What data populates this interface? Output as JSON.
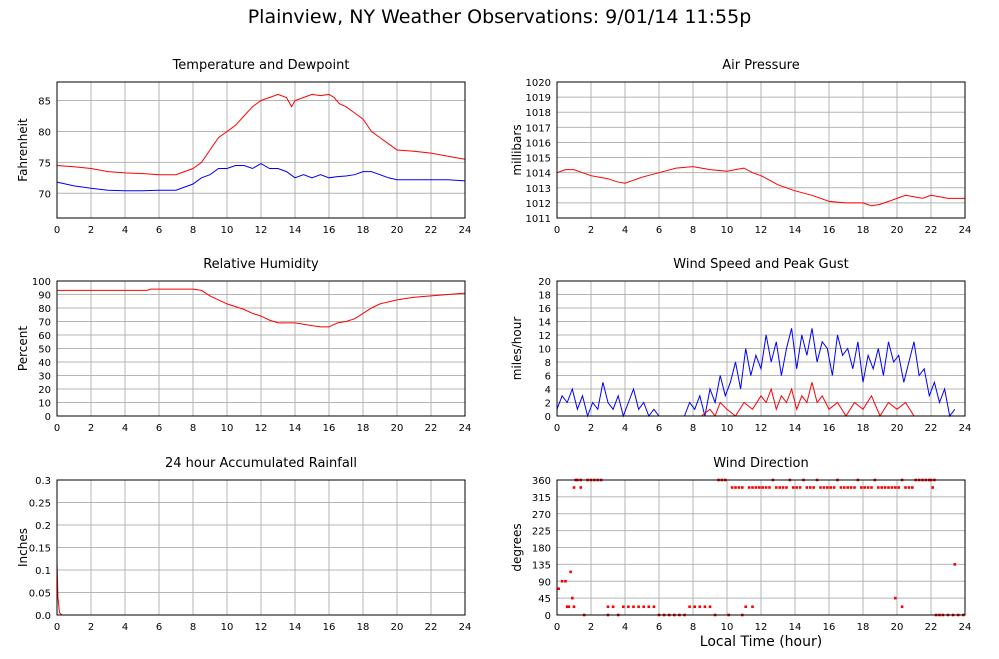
{
  "page": {
    "title": "Plainview, NY Weather Observations: 9/01/14 11:55p",
    "x_axis_label": "Local Time (hour)"
  },
  "chart_data": [
    {
      "type": "line",
      "title": "Temperature and Dewpoint",
      "ylabel": "Fahrenheit",
      "xlim": [
        0,
        24
      ],
      "ylim": [
        66,
        88
      ],
      "yticks": [
        70,
        75,
        80,
        85
      ],
      "xticks": [
        0,
        2,
        4,
        6,
        8,
        10,
        12,
        14,
        16,
        18,
        20,
        22,
        24
      ],
      "grid": true,
      "series": [
        {
          "color": "#ff0000",
          "x": [
            0,
            1,
            2,
            3,
            4,
            5,
            6,
            7,
            7.5,
            8,
            8.5,
            9,
            9.5,
            10,
            10.5,
            11,
            11.5,
            12,
            12.5,
            13,
            13.5,
            13.8,
            14,
            14.5,
            15,
            15.5,
            16,
            16.3,
            16.6,
            17,
            17.5,
            18,
            18.5,
            19,
            19.5,
            20,
            21,
            22,
            23,
            24
          ],
          "y": [
            74.5,
            74.3,
            74,
            73.5,
            73.3,
            73.2,
            73,
            73,
            73.5,
            74,
            75,
            77,
            79,
            80,
            81,
            82.5,
            84,
            85,
            85.5,
            86,
            85.5,
            84,
            85,
            85.5,
            86,
            85.8,
            86,
            85.5,
            84.5,
            84,
            83,
            82,
            80,
            79,
            78,
            77,
            76.8,
            76.5,
            76,
            75.5
          ]
        },
        {
          "color": "#0000ff",
          "x": [
            0,
            1,
            2,
            3,
            4,
            5,
            6,
            7,
            7.5,
            8,
            8.5,
            9,
            9.5,
            10,
            10.5,
            11,
            11.5,
            12,
            12.5,
            13,
            13.5,
            14,
            14.5,
            15,
            15.5,
            16,
            16.5,
            17,
            17.5,
            18,
            18.5,
            19,
            19.5,
            20,
            21,
            22,
            23,
            24
          ],
          "y": [
            71.8,
            71.2,
            70.8,
            70.5,
            70.4,
            70.4,
            70.5,
            70.5,
            71,
            71.5,
            72.5,
            73,
            74,
            74,
            74.5,
            74.5,
            74,
            74.8,
            74,
            74,
            73.5,
            72.5,
            73,
            72.5,
            73,
            72.5,
            72.7,
            72.8,
            73,
            73.5,
            73.5,
            73,
            72.5,
            72.2,
            72.2,
            72.2,
            72.2,
            72
          ]
        }
      ]
    },
    {
      "type": "line",
      "title": "Air Pressure",
      "ylabel": "millibars",
      "xlim": [
        0,
        24
      ],
      "ylim": [
        1011,
        1020
      ],
      "yticks": [
        1011,
        1012,
        1013,
        1014,
        1015,
        1016,
        1017,
        1018,
        1019,
        1020
      ],
      "xticks": [
        0,
        2,
        4,
        6,
        8,
        10,
        12,
        14,
        16,
        18,
        20,
        22,
        24
      ],
      "grid": true,
      "series": [
        {
          "color": "#ff0000",
          "x": [
            0,
            0.5,
            1,
            1.5,
            2,
            2.5,
            3,
            3.5,
            4,
            4.5,
            5,
            6,
            7,
            8,
            9,
            10,
            10.5,
            11,
            11.5,
            12,
            12.5,
            13,
            14,
            15,
            16,
            17,
            18,
            18.5,
            19,
            19.5,
            20,
            20.5,
            21,
            21.5,
            22,
            22.5,
            23,
            24
          ],
          "y": [
            1014,
            1014.2,
            1014.2,
            1014,
            1013.8,
            1013.7,
            1013.6,
            1013.4,
            1013.3,
            1013.5,
            1013.7,
            1014,
            1014.3,
            1014.4,
            1014.2,
            1014.1,
            1014.2,
            1014.3,
            1014,
            1013.8,
            1013.5,
            1013.2,
            1012.8,
            1012.5,
            1012.1,
            1012,
            1012,
            1011.8,
            1011.9,
            1012.1,
            1012.3,
            1012.5,
            1012.4,
            1012.3,
            1012.5,
            1012.4,
            1012.3,
            1012.3
          ]
        }
      ]
    },
    {
      "type": "line",
      "title": "Relative Humidity",
      "ylabel": "Percent",
      "xlim": [
        0,
        24
      ],
      "ylim": [
        0,
        100
      ],
      "yticks": [
        0,
        10,
        20,
        30,
        40,
        50,
        60,
        70,
        80,
        90,
        100
      ],
      "xticks": [
        0,
        2,
        4,
        6,
        8,
        10,
        12,
        14,
        16,
        18,
        20,
        22,
        24
      ],
      "grid": true,
      "series": [
        {
          "color": "#ff0000",
          "x": [
            0,
            2,
            4,
            5.3,
            5.5,
            6,
            7,
            8,
            8.5,
            9,
            9.5,
            10,
            10.5,
            11,
            11.5,
            12,
            12.5,
            13,
            13.5,
            14,
            14.5,
            15,
            15.5,
            16,
            16.5,
            17,
            17.5,
            18,
            18.5,
            19,
            20,
            21,
            22,
            23,
            24
          ],
          "y": [
            93,
            93,
            93,
            93,
            94,
            94,
            94,
            94,
            93,
            89,
            86,
            83,
            81,
            79,
            76,
            74,
            71,
            69,
            69,
            69,
            68,
            67,
            66,
            66,
            69,
            70,
            72,
            76,
            80,
            83,
            86,
            88,
            89,
            90,
            91
          ]
        }
      ]
    },
    {
      "type": "line",
      "title": "Wind Speed and Peak Gust",
      "ylabel": "miles/hour",
      "xlim": [
        0,
        24
      ],
      "ylim": [
        0,
        20
      ],
      "yticks": [
        0,
        2,
        4,
        6,
        8,
        10,
        12,
        14,
        16,
        18,
        20
      ],
      "xticks": [
        0,
        2,
        4,
        6,
        8,
        10,
        12,
        14,
        16,
        18,
        20,
        22,
        24
      ],
      "grid": true,
      "series": [
        {
          "color": "#0000ff",
          "x": [
            0,
            0.3,
            0.6,
            0.9,
            1.2,
            1.5,
            1.8,
            2.1,
            2.4,
            2.7,
            3,
            3.3,
            3.6,
            3.9,
            4.2,
            4.5,
            4.8,
            5.1,
            5.4,
            5.7,
            6,
            7.5,
            7.8,
            8.1,
            8.4,
            8.7,
            9,
            9.3,
            9.6,
            9.9,
            10.2,
            10.5,
            10.8,
            11.1,
            11.4,
            11.7,
            12,
            12.3,
            12.6,
            12.9,
            13.2,
            13.5,
            13.8,
            14.1,
            14.4,
            14.7,
            15,
            15.3,
            15.6,
            15.9,
            16.2,
            16.5,
            16.8,
            17.1,
            17.4,
            17.7,
            18,
            18.3,
            18.6,
            18.9,
            19.2,
            19.5,
            19.8,
            20.1,
            20.4,
            20.7,
            21,
            21.3,
            21.6,
            21.9,
            22.2,
            22.5,
            22.8,
            23.1,
            23.4
          ],
          "y": [
            1,
            3,
            2,
            4,
            1,
            3,
            0,
            2,
            1,
            5,
            2,
            1,
            3,
            0,
            2,
            4,
            1,
            2,
            0,
            1,
            0,
            0,
            2,
            1,
            3,
            0,
            4,
            2,
            6,
            3,
            5,
            8,
            4,
            10,
            6,
            9,
            7,
            12,
            8,
            11,
            6,
            10,
            13,
            7,
            12,
            9,
            13,
            8,
            11,
            10,
            6,
            12,
            9,
            10,
            7,
            11,
            5,
            9,
            7,
            10,
            6,
            11,
            8,
            9,
            5,
            8,
            11,
            6,
            7,
            3,
            5,
            2,
            4,
            0,
            1
          ]
        },
        {
          "color": "#ff0000",
          "x": [
            8.5,
            9,
            9.3,
            9.6,
            10,
            10.5,
            11,
            11.5,
            12,
            12.3,
            12.6,
            12.9,
            13.2,
            13.5,
            13.8,
            14.1,
            14.4,
            14.7,
            15,
            15.3,
            15.6,
            16,
            16.5,
            17,
            17.5,
            18,
            18.5,
            19,
            19.5,
            20,
            20.5,
            21
          ],
          "y": [
            0,
            1,
            0,
            2,
            1,
            0,
            2,
            1,
            3,
            2,
            4,
            1,
            3,
            2,
            4,
            1,
            3,
            2,
            5,
            2,
            3,
            1,
            2,
            0,
            2,
            1,
            3,
            0,
            2,
            1,
            2,
            0
          ],
          "note": ""
        }
      ]
    },
    {
      "type": "line",
      "title": "24 hour Accumulated Rainfall",
      "ylabel": "Inches",
      "xlim": [
        0,
        24
      ],
      "ylim": [
        0,
        0.3
      ],
      "yticks": [
        0.0,
        0.05,
        0.1,
        0.15,
        0.2,
        0.25,
        0.3
      ],
      "ytick_labels": [
        "0.0",
        "0.05",
        "0.1",
        "0.15",
        "0.2",
        "0.25",
        "0.3"
      ],
      "xticks": [
        0,
        2,
        4,
        6,
        8,
        10,
        12,
        14,
        16,
        18,
        20,
        22,
        24
      ],
      "grid": true,
      "series": [
        {
          "color": "#ff0000",
          "x": [
            0,
            0.05,
            0.15,
            0.3,
            24
          ],
          "y": [
            0.12,
            0.04,
            0.005,
            0,
            0
          ]
        }
      ]
    },
    {
      "type": "scatter",
      "title": "Wind Direction",
      "ylabel": "degrees",
      "xlim": [
        0,
        24
      ],
      "ylim": [
        0,
        360
      ],
      "yticks": [
        0,
        45,
        90,
        135,
        180,
        225,
        270,
        315,
        360
      ],
      "xticks": [
        0,
        2,
        4,
        6,
        8,
        10,
        12,
        14,
        16,
        18,
        20,
        22,
        24
      ],
      "grid": true,
      "series": [
        {
          "color": "#ff0000",
          "x": [
            0.1,
            0.3,
            0.5,
            0.6,
            0.7,
            0.9,
            1.0,
            1.1,
            1.2,
            1.4,
            1.6,
            1.8,
            2.0,
            2.2,
            2.4,
            2.6,
            3.0,
            3.3,
            3.6,
            3.9,
            4.2,
            4.5,
            4.8,
            5.1,
            5.4,
            5.7,
            6.0,
            6.3,
            6.6,
            6.9,
            7.2,
            7.5,
            7.8,
            8.1,
            8.4,
            8.7,
            9.0,
            9.3,
            9.5,
            9.7,
            9.9,
            10.1,
            10.3,
            10.5,
            10.7,
            10.9,
            11.1,
            11.3,
            11.5,
            11.7,
            11.9,
            12.1,
            12.3,
            12.5,
            12.7,
            12.9,
            13.1,
            13.3,
            13.5,
            13.7,
            13.9,
            14.1,
            14.3,
            14.5,
            14.7,
            14.9,
            15.1,
            15.3,
            15.5,
            15.7,
            15.9,
            16.1,
            16.3,
            16.5,
            16.7,
            16.9,
            17.1,
            17.3,
            17.5,
            17.7,
            17.9,
            18.1,
            18.3,
            18.5,
            18.7,
            18.9,
            19.1,
            19.3,
            19.5,
            19.7,
            19.9,
            20.1,
            20.3,
            20.5,
            20.7,
            20.9,
            21.1,
            21.3,
            21.5,
            21.7,
            21.9,
            22.1,
            22.3,
            22.5,
            22.7,
            23.0,
            23.3,
            23.6,
            23.9,
            22.0,
            22.2,
            23.4,
            19.9,
            20.3,
            11.5,
            10.9,
            1.4,
            3.0,
            1.0,
            0.8,
            0.6
          ],
          "y": [
            70,
            90,
            90,
            22,
            22,
            45,
            340,
            360,
            360,
            360,
            0,
            360,
            360,
            360,
            360,
            360,
            22,
            22,
            0,
            22,
            22,
            22,
            22,
            22,
            22,
            22,
            0,
            0,
            0,
            0,
            0,
            0,
            22,
            22,
            22,
            22,
            22,
            0,
            360,
            360,
            360,
            0,
            340,
            340,
            340,
            340,
            22,
            340,
            340,
            340,
            340,
            340,
            340,
            340,
            360,
            340,
            340,
            340,
            340,
            360,
            340,
            340,
            340,
            360,
            340,
            340,
            340,
            360,
            340,
            340,
            340,
            340,
            340,
            360,
            340,
            340,
            340,
            340,
            340,
            360,
            340,
            340,
            340,
            340,
            360,
            340,
            340,
            340,
            340,
            340,
            340,
            340,
            360,
            340,
            340,
            340,
            360,
            360,
            360,
            360,
            360,
            340,
            0,
            0,
            0,
            0,
            0,
            0,
            0,
            360,
            360,
            135,
            45,
            22,
            22,
            0,
            340,
            0,
            22,
            115,
            22
          ]
        }
      ]
    }
  ]
}
